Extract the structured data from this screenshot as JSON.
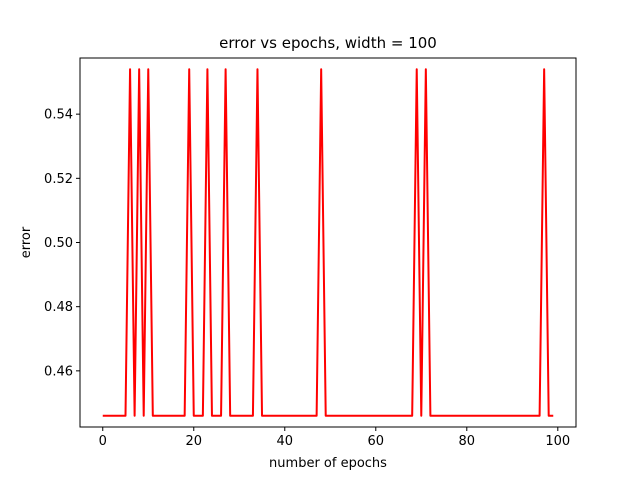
{
  "chart_data": {
    "type": "line",
    "title": "error vs epochs, width = 100",
    "xlabel": "number of epochs",
    "ylabel": "error",
    "xlim": [
      -5,
      104
    ],
    "ylim": [
      0.4425,
      0.5575
    ],
    "x_ticks": [
      0,
      20,
      40,
      60,
      80,
      100
    ],
    "y_ticks": [
      0.46,
      0.48,
      0.5,
      0.52,
      0.54
    ],
    "x_tick_labels": [
      "0",
      "20",
      "40",
      "60",
      "80",
      "100"
    ],
    "y_tick_labels": [
      "0.46",
      "0.48",
      "0.50",
      "0.52",
      "0.54"
    ],
    "grid": false,
    "legend": "none",
    "line_color": "#ff0000",
    "series": [
      {
        "x": [
          0,
          1,
          2,
          3,
          4,
          5,
          6,
          7,
          8,
          9,
          10,
          11,
          12,
          13,
          14,
          15,
          16,
          17,
          18,
          19,
          20,
          21,
          22,
          23,
          24,
          25,
          26,
          27,
          28,
          29,
          30,
          31,
          32,
          33,
          34,
          35,
          36,
          37,
          38,
          39,
          40,
          41,
          42,
          43,
          44,
          45,
          46,
          47,
          48,
          49,
          50,
          51,
          52,
          53,
          54,
          55,
          56,
          57,
          58,
          59,
          60,
          61,
          62,
          63,
          64,
          65,
          66,
          67,
          68,
          69,
          70,
          71,
          72,
          73,
          74,
          75,
          76,
          77,
          78,
          79,
          80,
          81,
          82,
          83,
          84,
          85,
          86,
          87,
          88,
          89,
          90,
          91,
          92,
          93,
          94,
          95,
          96,
          97,
          98,
          99
        ],
        "values": [
          0.446,
          0.446,
          0.446,
          0.446,
          0.446,
          0.446,
          0.554,
          0.446,
          0.554,
          0.446,
          0.554,
          0.446,
          0.446,
          0.446,
          0.446,
          0.446,
          0.446,
          0.446,
          0.446,
          0.554,
          0.446,
          0.446,
          0.446,
          0.554,
          0.446,
          0.446,
          0.446,
          0.554,
          0.446,
          0.446,
          0.446,
          0.446,
          0.446,
          0.446,
          0.554,
          0.446,
          0.446,
          0.446,
          0.446,
          0.446,
          0.446,
          0.446,
          0.446,
          0.446,
          0.446,
          0.446,
          0.446,
          0.446,
          0.554,
          0.446,
          0.446,
          0.446,
          0.446,
          0.446,
          0.446,
          0.446,
          0.446,
          0.446,
          0.446,
          0.446,
          0.446,
          0.446,
          0.446,
          0.446,
          0.446,
          0.446,
          0.446,
          0.446,
          0.446,
          0.554,
          0.446,
          0.554,
          0.446,
          0.446,
          0.446,
          0.446,
          0.446,
          0.446,
          0.446,
          0.446,
          0.446,
          0.446,
          0.446,
          0.446,
          0.446,
          0.446,
          0.446,
          0.446,
          0.446,
          0.446,
          0.446,
          0.446,
          0.446,
          0.446,
          0.446,
          0.446,
          0.446,
          0.554,
          0.446,
          0.446
        ]
      }
    ]
  }
}
